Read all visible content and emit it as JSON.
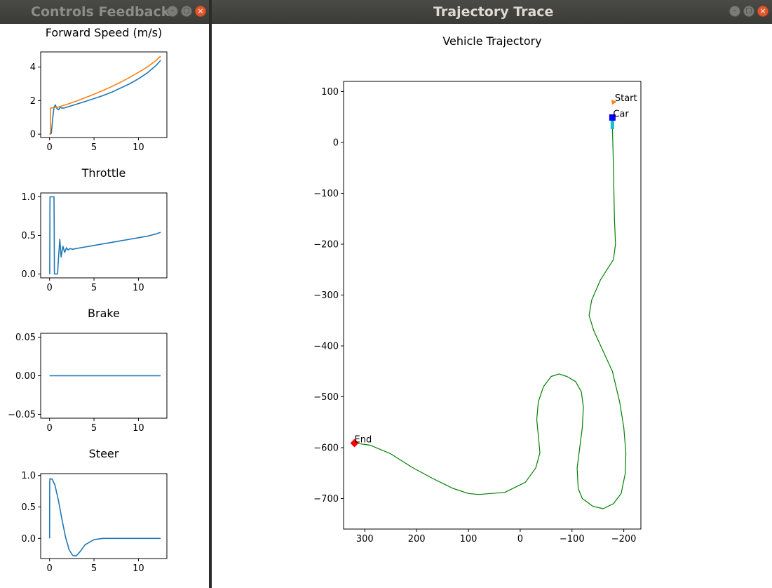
{
  "left_window": {
    "title": "Controls Feedback",
    "buttons": {
      "minimize": "–",
      "maximize": "▢",
      "close": "×"
    }
  },
  "right_window": {
    "title": "Trajectory Trace",
    "buttons": {
      "minimize": "–",
      "maximize": "▢",
      "close": "×"
    }
  },
  "colors": {
    "blue": "#1f77b4",
    "orange": "#ff7f0e",
    "green": "#008000"
  },
  "chart_data": [
    {
      "id": "speed",
      "type": "line",
      "title": "Forward Speed (m/s)",
      "xlim": [
        -1,
        13.2
      ],
      "ylim": [
        -0.2,
        4.9
      ],
      "xticks": [
        0,
        5,
        10
      ],
      "yticks": [
        0,
        2,
        4
      ],
      "ytick_labels": [
        "0",
        "2",
        "4"
      ],
      "series": [
        {
          "color": "#1f77b4",
          "x": [
            0,
            0.2,
            0.35,
            0.5,
            0.65,
            0.8,
            1.0,
            1.2,
            1.4,
            1.6,
            2,
            3,
            4,
            5,
            6,
            7,
            8,
            9,
            10,
            11,
            12,
            12.5
          ],
          "y": [
            0,
            0.05,
            0.9,
            1.6,
            1.75,
            1.55,
            1.45,
            1.6,
            1.55,
            1.55,
            1.62,
            1.78,
            1.95,
            2.12,
            2.3,
            2.5,
            2.75,
            3.0,
            3.3,
            3.65,
            4.1,
            4.4
          ]
        },
        {
          "color": "#ff7f0e",
          "x": [
            0,
            0.1,
            0.1,
            0.8,
            1,
            2,
            3,
            4,
            5,
            6,
            7,
            8,
            9,
            10,
            11,
            12,
            12.5
          ],
          "y": [
            0,
            0,
            1.55,
            1.6,
            1.62,
            1.78,
            1.97,
            2.17,
            2.38,
            2.6,
            2.84,
            3.1,
            3.38,
            3.68,
            4.0,
            4.4,
            4.65
          ]
        }
      ]
    },
    {
      "id": "throttle",
      "type": "line",
      "title": "Throttle",
      "xlim": [
        -1,
        13.2
      ],
      "ylim": [
        -0.05,
        1.05
      ],
      "xticks": [
        0,
        5,
        10
      ],
      "yticks": [
        0,
        0.5,
        1
      ],
      "ytick_labels": [
        "0.0",
        "0.5",
        "1.0"
      ],
      "series": [
        {
          "color": "#1f77b4",
          "x": [
            0,
            0.02,
            0.05,
            0.5,
            0.52,
            0.55,
            0.9,
            1.0,
            1.15,
            1.3,
            1.5,
            1.7,
            1.9,
            2.1,
            2.3,
            2.6,
            3,
            4,
            5,
            6,
            7,
            8,
            9,
            10,
            11,
            12,
            12.5
          ],
          "y": [
            0,
            0,
            1,
            1,
            0.6,
            0,
            0,
            0.2,
            0.45,
            0.22,
            0.36,
            0.28,
            0.34,
            0.31,
            0.33,
            0.32,
            0.33,
            0.35,
            0.37,
            0.39,
            0.41,
            0.43,
            0.45,
            0.47,
            0.49,
            0.52,
            0.54
          ]
        }
      ]
    },
    {
      "id": "brake",
      "type": "line",
      "title": "Brake",
      "xlim": [
        -1,
        13.2
      ],
      "ylim": [
        -0.055,
        0.055
      ],
      "xticks": [
        0,
        5,
        10
      ],
      "yticks": [
        -0.05,
        0,
        0.05
      ],
      "ytick_labels": [
        "−0.05",
        "0.00",
        "0.05"
      ],
      "series": [
        {
          "color": "#1f77b4",
          "x": [
            0,
            12.5
          ],
          "y": [
            0,
            0
          ]
        }
      ]
    },
    {
      "id": "steer",
      "type": "line",
      "title": "Steer",
      "xlim": [
        -1,
        13.2
      ],
      "ylim": [
        -0.32,
        1.03
      ],
      "xticks": [
        0,
        5,
        10
      ],
      "yticks": [
        0,
        0.5,
        1
      ],
      "ytick_labels": [
        "0.0",
        "0.5",
        "1.0"
      ],
      "series": [
        {
          "color": "#1f77b4",
          "x": [
            0,
            0.02,
            0.05,
            0.3,
            0.6,
            1.0,
            1.4,
            1.8,
            2.2,
            2.6,
            3.0,
            3.5,
            4.0,
            5.0,
            6.0,
            7.0,
            8.0,
            10.0,
            12.5
          ],
          "y": [
            0,
            0.9,
            0.95,
            0.94,
            0.85,
            0.6,
            0.3,
            0.02,
            -0.18,
            -0.27,
            -0.28,
            -0.2,
            -0.1,
            -0.02,
            0,
            0,
            0,
            0,
            0
          ]
        }
      ]
    },
    {
      "id": "trajectory",
      "type": "line",
      "title": "Vehicle Trajectory",
      "xlim": [
        341,
        -233
      ],
      "ylim": [
        -760,
        120
      ],
      "xticks": [
        300,
        200,
        100,
        0,
        -100,
        -200
      ],
      "xtick_labels": [
        "300",
        "200",
        "100",
        "0",
        "−100",
        "−200"
      ],
      "yticks": [
        100,
        0,
        -100,
        -200,
        -300,
        -400,
        -500,
        -600,
        -700
      ],
      "ytick_labels": [
        "100",
        "0",
        "−100",
        "−200",
        "−300",
        "−400",
        "−500",
        "−600",
        "−700"
      ],
      "series": [
        {
          "color": "#008000",
          "x": [
            -178,
            -180,
            -182,
            -184,
            -180,
            -155,
            -138,
            -133,
            -142,
            -160,
            -178,
            -192,
            -200,
            -204,
            -203,
            -195,
            -180,
            -160,
            -140,
            -120,
            -112,
            -110,
            -115,
            -120,
            -122,
            -118,
            -107,
            -90,
            -75,
            -60,
            -45,
            -35,
            -32,
            -35,
            -38,
            -30,
            -10,
            30,
            80,
            100,
            130,
            170,
            210,
            250,
            290,
            320
          ],
          "y": [
            30,
            -50,
            -150,
            -200,
            -230,
            -270,
            -310,
            -340,
            -370,
            -410,
            -450,
            -510,
            -560,
            -610,
            -650,
            -690,
            -710,
            -720,
            -715,
            -700,
            -680,
            -640,
            -600,
            -560,
            -520,
            -490,
            -470,
            -460,
            -455,
            -460,
            -480,
            -510,
            -545,
            -575,
            -610,
            -640,
            -668,
            -688,
            -692,
            -690,
            -680,
            -660,
            -638,
            -612,
            -595,
            -591
          ]
        }
      ],
      "markers": [
        {
          "label": "Start",
          "x": -180,
          "y": 77,
          "color": "#ff7f0e",
          "shape": "flag"
        },
        {
          "label": "Car",
          "x": -178,
          "y": 49,
          "color": "#0000ff",
          "shape": "square"
        },
        {
          "label": "End",
          "x": 320,
          "y": -591,
          "color": "#ff0000",
          "shape": "diamond"
        }
      ],
      "car_trail": {
        "color": "#17becf",
        "x": [
          -178,
          -178
        ],
        "y": [
          49,
          26
        ]
      }
    }
  ]
}
